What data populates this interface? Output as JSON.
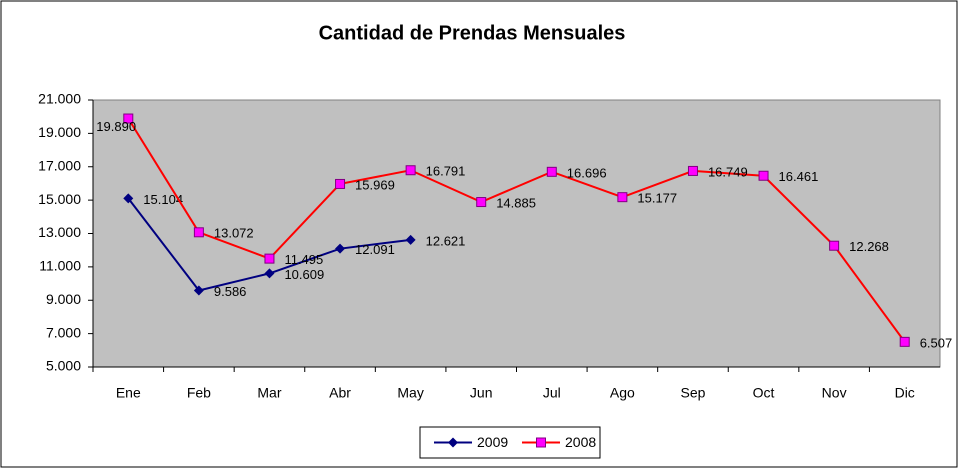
{
  "chart_data": {
    "type": "line",
    "title": "Cantidad de Prendas Mensuales",
    "categories": [
      "Ene",
      "Feb",
      "Mar",
      "Abr",
      "May",
      "Jun",
      "Jul",
      "Ago",
      "Sep",
      "Oct",
      "Nov",
      "Dic"
    ],
    "series": [
      {
        "name": "2009",
        "color": "#000080",
        "marker_color": "#000080",
        "label_color": "#0000ff",
        "marker": "diamond",
        "values": [
          15104,
          9586,
          10609,
          12091,
          12621,
          null,
          null,
          null,
          null,
          null,
          null,
          null
        ],
        "value_labels": [
          "15.104",
          "9.586",
          "10.609",
          "12.091",
          "12.621",
          null,
          null,
          null,
          null,
          null,
          null,
          null
        ]
      },
      {
        "name": "2008",
        "color": "#ff0000",
        "marker_color": "#ff00ff",
        "label_color": "#ff0000",
        "marker": "square",
        "values": [
          19890,
          13072,
          11495,
          15969,
          16791,
          14885,
          16696,
          15177,
          16749,
          16461,
          12268,
          6507
        ],
        "value_labels": [
          "19.890",
          "13.072",
          "11.495",
          "15.969",
          "16.791",
          "14.885",
          "16.696",
          "15.177",
          "16.749",
          "16.461",
          "12.268",
          "6.507"
        ]
      }
    ],
    "ylim": [
      5000,
      21000
    ],
    "yticks": [
      {
        "value": 5000,
        "label": "5.000"
      },
      {
        "value": 7000,
        "label": "7.000"
      },
      {
        "value": 9000,
        "label": "9.000"
      },
      {
        "value": 11000,
        "label": "11.000"
      },
      {
        "value": 13000,
        "label": "13.000"
      },
      {
        "value": 15000,
        "label": "15.000"
      },
      {
        "value": 17000,
        "label": "17.000"
      },
      {
        "value": 19000,
        "label": "19.000"
      },
      {
        "value": 21000,
        "label": "21.000"
      }
    ],
    "grid": false,
    "plot_background": "#c0c0c0",
    "legend": "bottom"
  }
}
